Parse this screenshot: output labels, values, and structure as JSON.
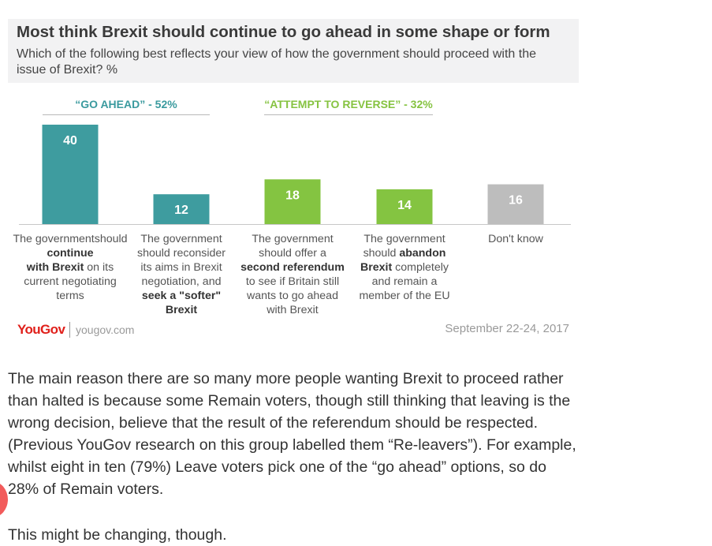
{
  "chart_header": {
    "title": "Most think Brexit should continue to go ahead in some shape or form",
    "subtitle": "Which of the following best reflects your view of how the government should proceed with the issue of Brexit? %"
  },
  "groups": [
    {
      "label": "“GO AHEAD” - 52%",
      "color": "#3a9a9e"
    },
    {
      "label": "“ATTEMPT TO REVERSE” - 32%",
      "color": "#86c341"
    }
  ],
  "chart_data": {
    "type": "bar",
    "title": "Most think Brexit should continue to go ahead in some shape or form",
    "subtitle": "Which of the following best reflects your view of how the government should proceed with the issue of Brexit? %",
    "ylim": [
      0,
      40
    ],
    "grid": false,
    "legend": "none",
    "categories": [
      "The government should continue with Brexit on its current negotiating terms",
      "The government should reconsider its aims in Brexit negotiation, and seek a \"softer\" Brexit",
      "The government should offer a second referendum to see if Britain still wants to go ahead with Brexit",
      "The government should abandon Brexit completely and remain a member of the EU",
      "Don't know"
    ],
    "values": [
      40,
      12,
      18,
      14,
      16
    ],
    "colors": [
      "#3e9c9f",
      "#3e9c9f",
      "#84c441",
      "#84c441",
      "#bdbdbd"
    ]
  },
  "category_labels": [
    [
      {
        "t": "The government"
      },
      {
        "t": "should "
      },
      {
        "t": "continue",
        "b": true
      },
      {
        "br": true
      },
      {
        "t": "with Brexit",
        "b": true
      },
      {
        "t": " on its"
      },
      {
        "br": true
      },
      {
        "t": "current negotiating"
      },
      {
        "br": true
      },
      {
        "t": "terms"
      }
    ],
    [
      {
        "t": "The government"
      },
      {
        "br": true
      },
      {
        "t": "should reconsider"
      },
      {
        "br": true
      },
      {
        "t": "its aims in Brexit"
      },
      {
        "br": true
      },
      {
        "t": "negotiation, and"
      },
      {
        "br": true
      },
      {
        "t": "seek a \"softer\"",
        "b": true
      },
      {
        "br": true
      },
      {
        "t": "Brexit",
        "b": true
      }
    ],
    [
      {
        "t": "The government"
      },
      {
        "br": true
      },
      {
        "t": "should offer a"
      },
      {
        "br": true
      },
      {
        "t": "second referendum",
        "b": true
      },
      {
        "br": true
      },
      {
        "t": "to see if Britain still"
      },
      {
        "br": true
      },
      {
        "t": "wants to go ahead"
      },
      {
        "br": true
      },
      {
        "t": "with Brexit"
      }
    ],
    [
      {
        "t": "The government"
      },
      {
        "br": true
      },
      {
        "t": "should "
      },
      {
        "t": "abandon",
        "b": true
      },
      {
        "br": true
      },
      {
        "t": "Brexit",
        "b": true
      },
      {
        "t": " completely"
      },
      {
        "br": true
      },
      {
        "t": "and remain a"
      },
      {
        "br": true
      },
      {
        "t": "member of the EU"
      }
    ],
    [
      {
        "t": "Don't know"
      }
    ]
  ],
  "footer": {
    "logo": "YouGov",
    "url": "yougov.com",
    "date": "September 22-24, 2017"
  },
  "article": {
    "paragraph": "The main reason there are so many more people wanting Brexit to proceed rather than halted is because some Remain voters, though still thinking that leaving is the wrong decision, believe that the result of the referendum should be respected. (Previous YouGov research on this group labelled them “Re-leavers”). For example, whilst eight in ten (79%) Leave voters pick one of the “go ahead” options, so do 28% of Remain voters.",
    "next_paragraph": "This might be changing, though."
  }
}
